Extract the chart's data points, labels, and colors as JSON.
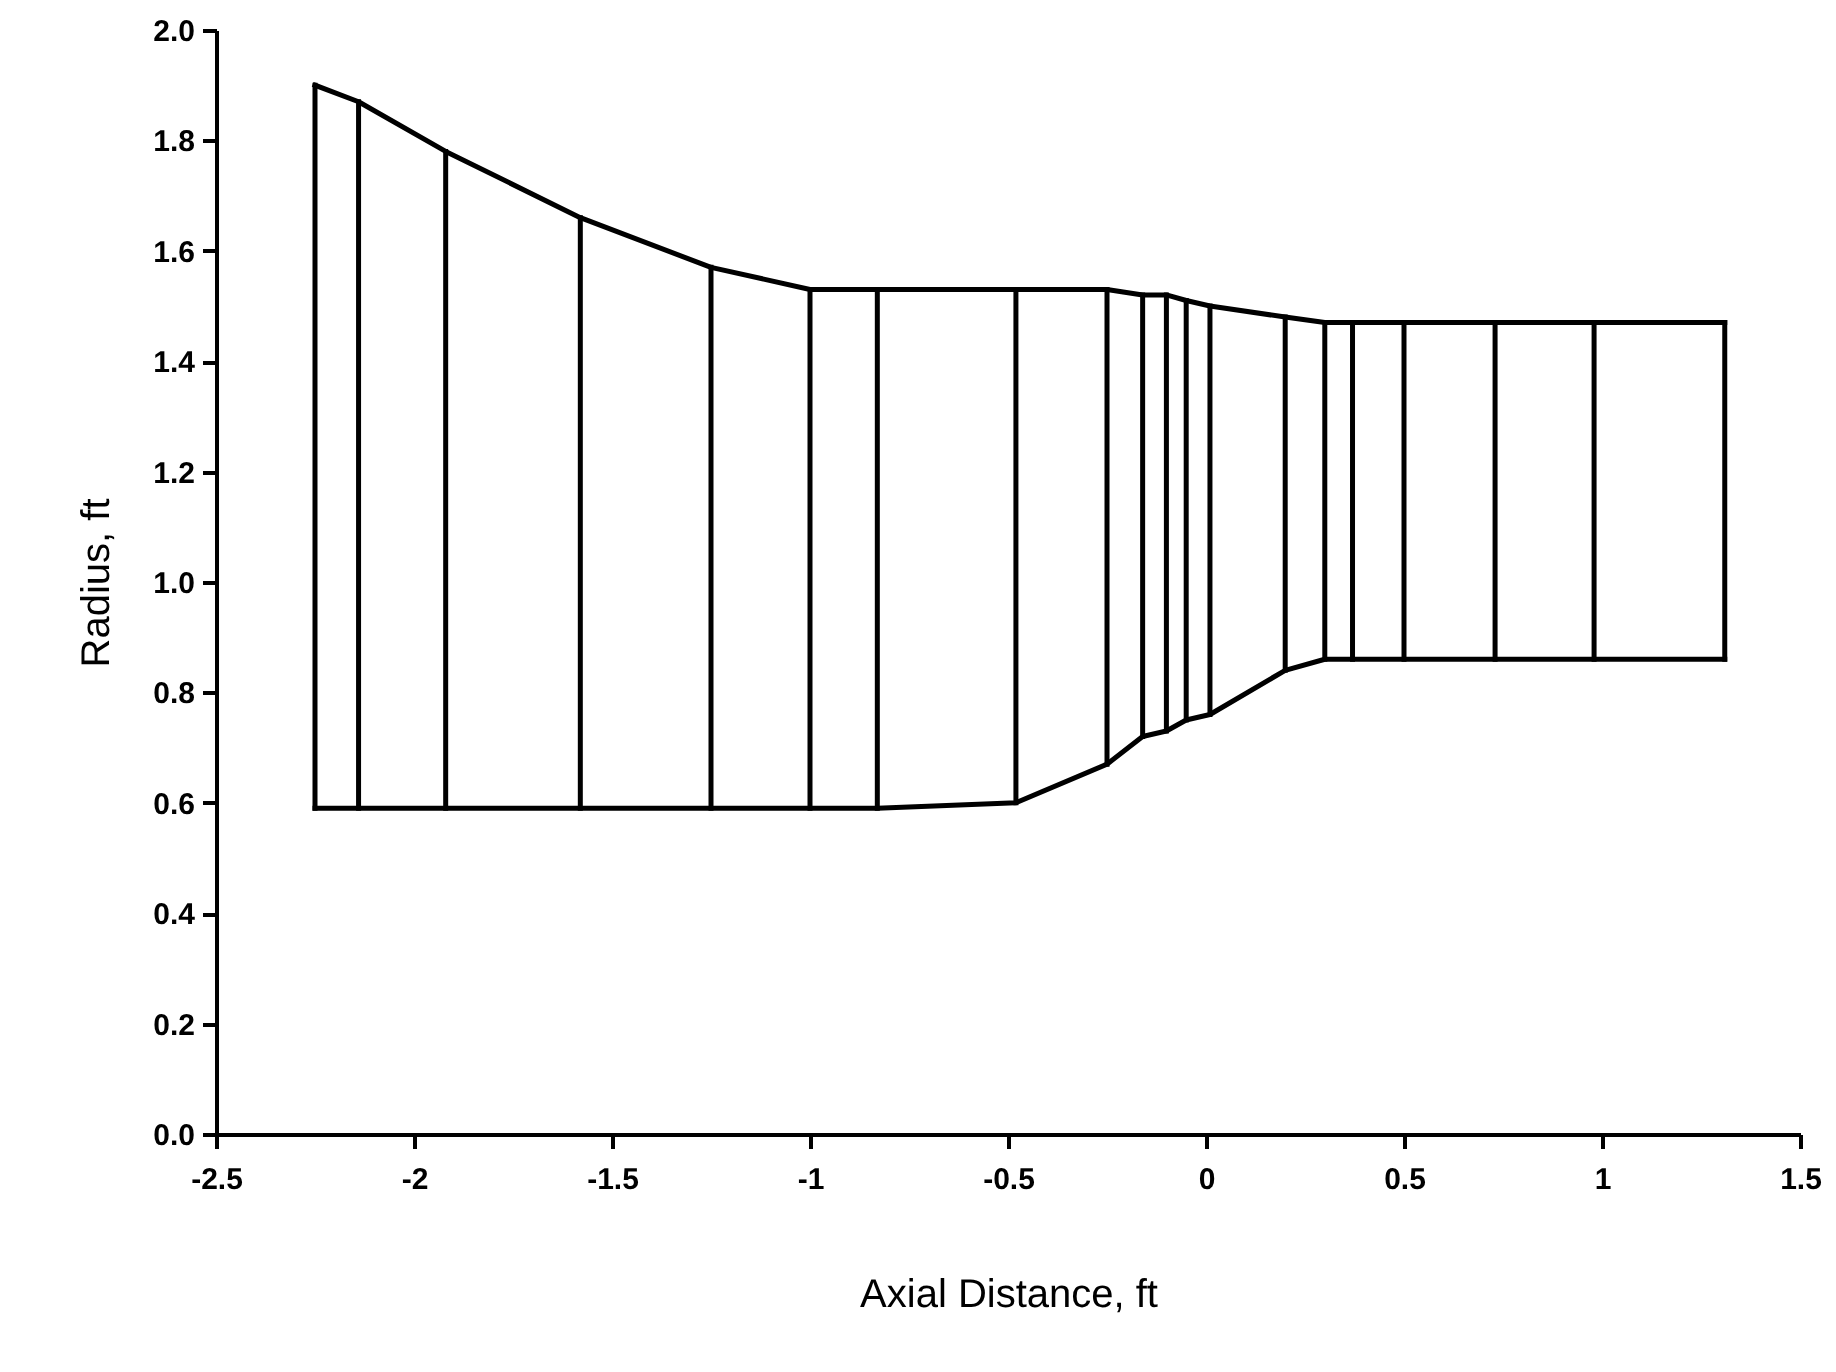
{
  "chart_data": {
    "type": "line",
    "xlabel": "Axial Distance, ft",
    "ylabel": "Radius, ft",
    "xlim": [
      -2.5,
      1.5
    ],
    "xticks": [
      -2.5,
      -2,
      -1.5,
      -1,
      -0.5,
      0,
      0.5,
      1,
      1.5
    ],
    "ylim": [
      0,
      2
    ],
    "yticks": [
      {
        "value": 0,
        "label": "0.0"
      },
      0.2,
      0.4,
      0.6,
      0.8,
      {
        "value": 1,
        "label": "1.0"
      },
      1.2,
      1.4,
      1.6,
      1.8,
      {
        "value": 2,
        "label": "2.0"
      }
    ],
    "series": [
      {
        "color": "#000000",
        "x": [
          -2.25,
          -2.14,
          -1.92,
          -1.58,
          -1.25,
          -1.0,
          -0.83,
          -0.48,
          -0.25,
          -0.16,
          -0.1,
          -0.05,
          0.01,
          0.2,
          0.3,
          0.37,
          0.5,
          0.73,
          0.98,
          1.31
        ],
        "values": [
          1.9,
          1.87,
          1.78,
          1.66,
          1.57,
          1.53,
          1.53,
          1.53,
          1.53,
          1.52,
          1.52,
          1.51,
          1.5,
          1.48,
          1.47,
          1.47,
          1.47,
          1.47,
          1.47,
          1.47
        ]
      },
      {
        "color": "#000000",
        "x": [
          -2.25,
          -2.14,
          -1.92,
          -1.58,
          -1.25,
          -1.0,
          -0.83,
          -0.48,
          -0.25,
          -0.16,
          -0.1,
          -0.05,
          0.01,
          0.2,
          0.3,
          0.37,
          0.5,
          0.73,
          0.98,
          1.31
        ],
        "values": [
          0.59,
          0.59,
          0.59,
          0.59,
          0.59,
          0.59,
          0.59,
          0.6,
          0.67,
          0.72,
          0.73,
          0.75,
          0.76,
          0.84,
          0.86,
          0.86,
          0.86,
          0.86,
          0.86,
          0.86
        ]
      },
      {
        "color": "#000000",
        "x": [
          -2.25,
          -2.25
        ],
        "values": [
          0.59,
          1.9
        ]
      },
      {
        "color": "#000000",
        "x": [
          -2.14,
          -2.14
        ],
        "values": [
          0.59,
          1.87
        ]
      },
      {
        "color": "#000000",
        "x": [
          -1.92,
          -1.92
        ],
        "values": [
          0.59,
          1.78
        ]
      },
      {
        "color": "#000000",
        "x": [
          -1.58,
          -1.58
        ],
        "values": [
          0.59,
          1.66
        ]
      },
      {
        "color": "#000000",
        "x": [
          -1.25,
          -1.25
        ],
        "values": [
          0.59,
          1.57
        ]
      },
      {
        "color": "#000000",
        "x": [
          -1.0,
          -1.0
        ],
        "values": [
          0.59,
          1.53
        ]
      },
      {
        "color": "#000000",
        "x": [
          -0.83,
          -0.83
        ],
        "values": [
          0.59,
          1.53
        ]
      },
      {
        "color": "#000000",
        "x": [
          -0.48,
          -0.48
        ],
        "values": [
          0.6,
          1.53
        ]
      },
      {
        "color": "#000000",
        "x": [
          -0.25,
          -0.25
        ],
        "values": [
          0.67,
          1.53
        ]
      },
      {
        "color": "#000000",
        "x": [
          -0.16,
          -0.16
        ],
        "values": [
          0.72,
          1.52
        ]
      },
      {
        "color": "#000000",
        "x": [
          -0.1,
          -0.1
        ],
        "values": [
          0.73,
          1.52
        ]
      },
      {
        "color": "#000000",
        "x": [
          -0.05,
          -0.05
        ],
        "values": [
          0.75,
          1.51
        ]
      },
      {
        "color": "#000000",
        "x": [
          0.01,
          0.01
        ],
        "values": [
          0.76,
          1.5
        ]
      },
      {
        "color": "#000000",
        "x": [
          0.2,
          0.2
        ],
        "values": [
          0.84,
          1.48
        ]
      },
      {
        "color": "#000000",
        "x": [
          0.3,
          0.3
        ],
        "values": [
          0.86,
          1.47
        ]
      },
      {
        "color": "#000000",
        "x": [
          0.37,
          0.37
        ],
        "values": [
          0.86,
          1.47
        ]
      },
      {
        "color": "#000000",
        "x": [
          0.5,
          0.5
        ],
        "values": [
          0.86,
          1.47
        ]
      },
      {
        "color": "#000000",
        "x": [
          0.73,
          0.73
        ],
        "values": [
          0.86,
          1.47
        ]
      },
      {
        "color": "#000000",
        "x": [
          0.98,
          0.98
        ],
        "values": [
          0.86,
          1.47
        ]
      },
      {
        "color": "#000000",
        "x": [
          1.31,
          1.31
        ],
        "values": [
          0.86,
          1.47
        ]
      }
    ]
  }
}
